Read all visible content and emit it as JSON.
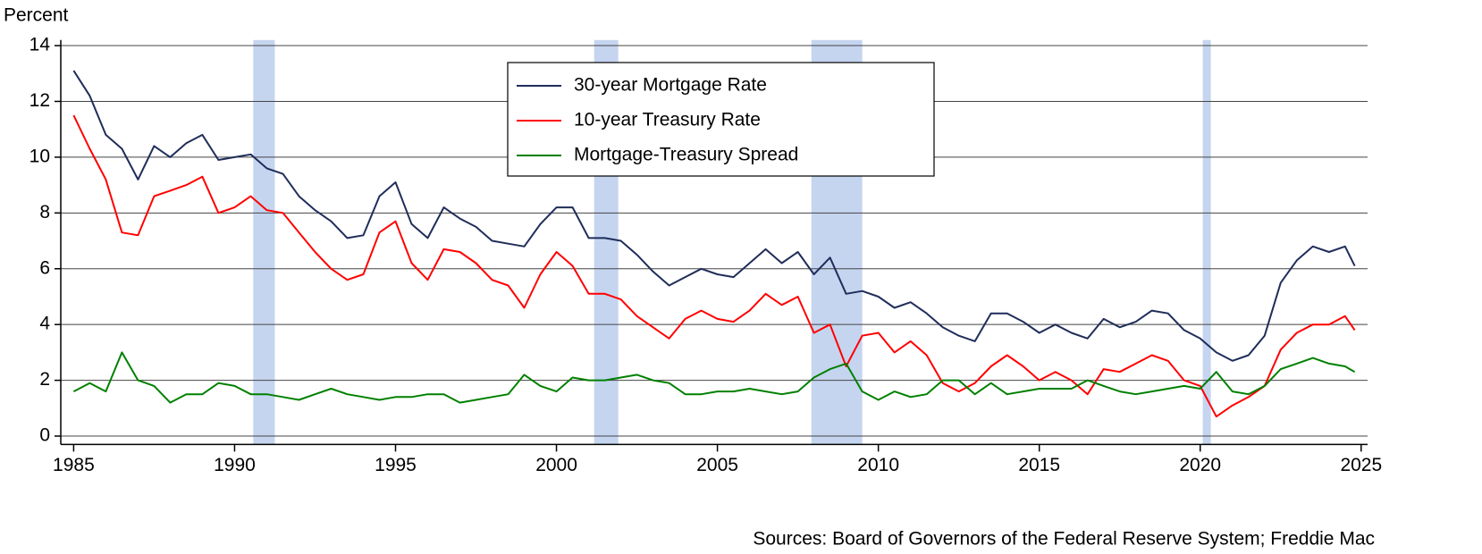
{
  "chart_data": {
    "type": "line",
    "ylabel": "Percent",
    "source": "Sources: Board of Governors of the Federal Reserve System; Freddie Mac",
    "x": [
      1985,
      1985.5,
      1986,
      1986.5,
      1987,
      1987.5,
      1988,
      1988.5,
      1989,
      1989.5,
      1990,
      1990.5,
      1991,
      1991.5,
      1992,
      1992.5,
      1993,
      1993.5,
      1994,
      1994.5,
      1995,
      1995.5,
      1996,
      1996.5,
      1997,
      1997.5,
      1998,
      1998.5,
      1999,
      1999.5,
      2000,
      2000.5,
      2001,
      2001.5,
      2002,
      2002.5,
      2003,
      2003.5,
      2004,
      2004.5,
      2005,
      2005.5,
      2006,
      2006.5,
      2007,
      2007.5,
      2008,
      2008.5,
      2009,
      2009.5,
      2010,
      2010.5,
      2011,
      2011.5,
      2012,
      2012.5,
      2013,
      2013.5,
      2014,
      2014.5,
      2015,
      2015.5,
      2016,
      2016.5,
      2017,
      2017.5,
      2018,
      2018.5,
      2019,
      2019.5,
      2020,
      2020.5,
      2021,
      2021.5,
      2022,
      2022.5,
      2023,
      2023.5,
      2024,
      2024.5,
      2024.8
    ],
    "series": [
      {
        "name": "30-year Mortgage Rate",
        "color": "#1f2d5a",
        "values": [
          13.1,
          12.2,
          10.8,
          10.3,
          9.2,
          10.4,
          10.0,
          10.5,
          10.8,
          9.9,
          10.0,
          10.1,
          9.6,
          9.4,
          8.6,
          8.1,
          7.7,
          7.1,
          7.2,
          8.6,
          9.1,
          7.6,
          7.1,
          8.2,
          7.8,
          7.5,
          7.0,
          6.9,
          6.8,
          7.6,
          8.2,
          8.2,
          7.1,
          7.1,
          7.0,
          6.5,
          5.9,
          5.4,
          5.7,
          6.0,
          5.8,
          5.7,
          6.2,
          6.7,
          6.2,
          6.6,
          5.8,
          6.4,
          5.1,
          5.2,
          5.0,
          4.6,
          4.8,
          4.4,
          3.9,
          3.6,
          3.4,
          4.4,
          4.4,
          4.1,
          3.7,
          4.0,
          3.7,
          3.5,
          4.2,
          3.9,
          4.1,
          4.5,
          4.4,
          3.8,
          3.5,
          3.0,
          2.7,
          2.9,
          3.6,
          5.5,
          6.3,
          6.8,
          6.6,
          6.8,
          6.1
        ]
      },
      {
        "name": "10-year Treasury Rate",
        "color": "#ff0000",
        "values": [
          11.5,
          10.3,
          9.2,
          7.3,
          7.2,
          8.6,
          8.8,
          9.0,
          9.3,
          8.0,
          8.2,
          8.6,
          8.1,
          8.0,
          7.3,
          6.6,
          6.0,
          5.6,
          5.8,
          7.3,
          7.7,
          6.2,
          5.6,
          6.7,
          6.6,
          6.2,
          5.6,
          5.4,
          4.6,
          5.8,
          6.6,
          6.1,
          5.1,
          5.1,
          4.9,
          4.3,
          3.9,
          3.5,
          4.2,
          4.5,
          4.2,
          4.1,
          4.5,
          5.1,
          4.7,
          5.0,
          3.7,
          4.0,
          2.5,
          3.6,
          3.7,
          3.0,
          3.4,
          2.9,
          1.9,
          1.6,
          1.9,
          2.5,
          2.9,
          2.5,
          2.0,
          2.3,
          2.0,
          1.5,
          2.4,
          2.3,
          2.6,
          2.9,
          2.7,
          2.0,
          1.8,
          0.7,
          1.1,
          1.4,
          1.8,
          3.1,
          3.7,
          4.0,
          4.0,
          4.3,
          3.8
        ]
      },
      {
        "name": "Mortgage-Treasury Spread",
        "color": "#008000",
        "values": [
          1.6,
          1.9,
          1.6,
          3.0,
          2.0,
          1.8,
          1.2,
          1.5,
          1.5,
          1.9,
          1.8,
          1.5,
          1.5,
          1.4,
          1.3,
          1.5,
          1.7,
          1.5,
          1.4,
          1.3,
          1.4,
          1.4,
          1.5,
          1.5,
          1.2,
          1.3,
          1.4,
          1.5,
          2.2,
          1.8,
          1.6,
          2.1,
          2.0,
          2.0,
          2.1,
          2.2,
          2.0,
          1.9,
          1.5,
          1.5,
          1.6,
          1.6,
          1.7,
          1.6,
          1.5,
          1.6,
          2.1,
          2.4,
          2.6,
          1.6,
          1.3,
          1.6,
          1.4,
          1.5,
          2.0,
          2.0,
          1.5,
          1.9,
          1.5,
          1.6,
          1.7,
          1.7,
          1.7,
          2.0,
          1.8,
          1.6,
          1.5,
          1.6,
          1.7,
          1.8,
          1.7,
          2.3,
          1.6,
          1.5,
          1.8,
          2.4,
          2.6,
          2.8,
          2.6,
          2.5,
          2.3
        ]
      }
    ],
    "recessions": [
      [
        1990.58,
        1991.25
      ],
      [
        2001.17,
        2001.92
      ],
      [
        2007.92,
        2009.5
      ],
      [
        2020.08,
        2020.33
      ]
    ],
    "recession_color": "#c5d5f0",
    "xlim": [
      1984.6,
      2025.2
    ],
    "xticks": [
      1985,
      1990,
      1995,
      2000,
      2005,
      2010,
      2015,
      2020,
      2025
    ],
    "ylim": [
      -0.3,
      14.2
    ],
    "yticks": [
      0,
      2,
      4,
      6,
      8,
      10,
      12,
      14
    ],
    "grid": true,
    "legend": "top-center"
  }
}
